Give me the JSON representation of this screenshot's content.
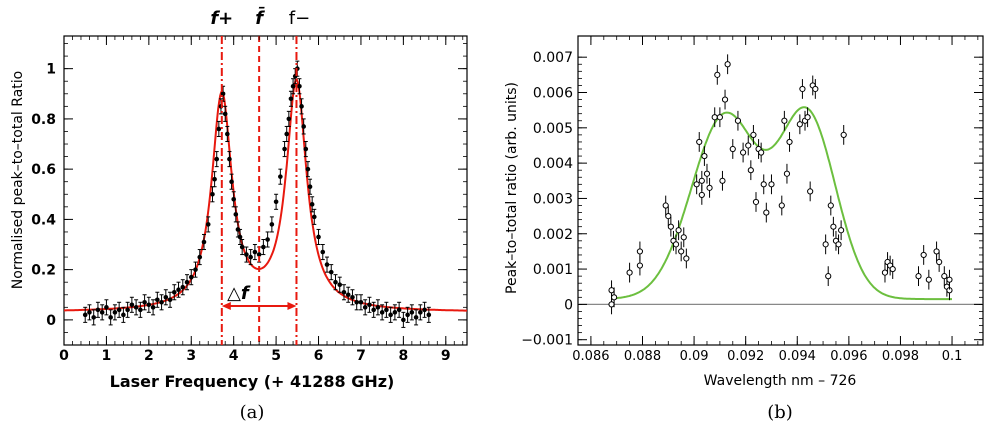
{
  "chart_data": [
    {
      "panel_label": "(a)",
      "type": "scatter",
      "xlabel": "Laser Frequency (+ 41288 GHz)",
      "ylabel": "Normalised peak–to–total Ratio",
      "xlim": [
        0,
        9.5
      ],
      "ylim": [
        -0.1,
        1.13
      ],
      "xticks": [
        0,
        1,
        2,
        3,
        4,
        5,
        6,
        7,
        8,
        9
      ],
      "yticks": [
        0,
        0.2,
        0.4,
        0.6,
        0.8,
        1
      ],
      "ytick_labels": [
        "0",
        "0.2",
        "0.4",
        "0.6",
        "0.8",
        "1"
      ],
      "colors": {
        "data": "#000000",
        "fit": "#e8190f",
        "markers": "#e8190f"
      },
      "vlines": [
        {
          "label": "f+",
          "x": 3.72,
          "style": "dash-dot"
        },
        {
          "label": "f̄",
          "x": 4.6,
          "style": "dashed"
        },
        {
          "label": "f−",
          "x": 5.48,
          "style": "dash-dot"
        }
      ],
      "delta_label": "△f",
      "delta_arrow": {
        "x1": 3.72,
        "x2": 5.48,
        "y": 0.055
      },
      "fit_model": {
        "baseline": 0.03,
        "peaks": [
          {
            "center": 3.72,
            "amp": 0.855,
            "hwhm": 0.29
          },
          {
            "center": 5.48,
            "amp": 0.905,
            "hwhm": 0.29
          }
        ]
      },
      "series": [
        {
          "x": [
            0.5,
            0.6,
            0.7,
            0.8,
            0.9,
            1.0,
            1.1,
            1.2,
            1.3,
            1.4,
            1.5,
            1.6,
            1.7,
            1.8,
            1.9,
            2.0,
            2.1,
            2.2,
            2.3,
            2.4,
            2.5,
            2.6,
            2.7,
            2.8,
            2.9,
            3.0,
            3.1,
            3.2,
            3.3,
            3.4,
            3.5,
            3.55,
            3.6,
            3.65,
            3.7,
            3.75,
            3.8,
            3.85,
            3.9,
            3.95,
            4.0,
            4.05,
            4.1,
            4.15,
            4.2,
            4.3,
            4.4,
            4.5,
            4.6,
            4.7,
            4.8,
            4.9,
            5.0,
            5.1,
            5.2,
            5.25,
            5.3,
            5.35,
            5.4,
            5.45,
            5.5,
            5.55,
            5.6,
            5.65,
            5.7,
            5.75,
            5.8,
            5.85,
            5.9,
            6.0,
            6.1,
            6.2,
            6.3,
            6.4,
            6.5,
            6.6,
            6.7,
            6.8,
            6.9,
            7.0,
            7.1,
            7.2,
            7.3,
            7.4,
            7.5,
            7.6,
            7.7,
            7.8,
            7.9,
            8.0,
            8.1,
            8.2,
            8.3,
            8.4,
            8.5,
            8.6
          ],
          "y": [
            0.02,
            0.03,
            0.01,
            0.04,
            0.03,
            0.05,
            0.01,
            0.03,
            0.04,
            0.02,
            0.04,
            0.06,
            0.05,
            0.04,
            0.07,
            0.06,
            0.05,
            0.08,
            0.07,
            0.09,
            0.08,
            0.11,
            0.12,
            0.13,
            0.15,
            0.17,
            0.2,
            0.25,
            0.31,
            0.38,
            0.5,
            0.56,
            0.64,
            0.76,
            0.85,
            0.9,
            0.82,
            0.74,
            0.64,
            0.55,
            0.48,
            0.42,
            0.36,
            0.33,
            0.29,
            0.26,
            0.25,
            0.27,
            0.26,
            0.29,
            0.32,
            0.38,
            0.47,
            0.57,
            0.68,
            0.74,
            0.8,
            0.88,
            0.93,
            0.97,
            1.0,
            0.93,
            0.85,
            0.77,
            0.68,
            0.6,
            0.53,
            0.46,
            0.41,
            0.33,
            0.27,
            0.22,
            0.19,
            0.15,
            0.14,
            0.11,
            0.1,
            0.09,
            0.07,
            0.07,
            0.05,
            0.06,
            0.04,
            0.05,
            0.03,
            0.04,
            0.02,
            0.03,
            0.04,
            0.0,
            0.02,
            0.03,
            0.01,
            0.03,
            0.04,
            0.02
          ]
        }
      ]
    },
    {
      "panel_label": "(b)",
      "type": "scatter",
      "xlabel": "Wavelength nm – 726",
      "ylabel": "Peak–to–total ratio (arb. units)",
      "xlim": [
        0.0855,
        0.1012
      ],
      "ylim": [
        -0.00115,
        0.0076
      ],
      "xticks": [
        0.086,
        0.088,
        0.09,
        0.092,
        0.094,
        0.096,
        0.098,
        0.1
      ],
      "xtick_labels": [
        "0.086",
        "0.088",
        "0.09",
        "0.092",
        "0.094",
        "0.096",
        "0.098",
        "0.1"
      ],
      "yticks": [
        -0.001,
        0,
        0.001,
        0.002,
        0.003,
        0.004,
        0.005,
        0.006,
        0.007
      ],
      "ytick_labels": [
        "−0.001",
        "0",
        "0.001",
        "0.002",
        "0.003",
        "0.004",
        "0.005",
        "0.006",
        "0.007"
      ],
      "colors": {
        "data": "#000000",
        "fit": "#6cbf3f",
        "zero_line": "#888888"
      },
      "fit_model": {
        "baseline": 0.00015,
        "peaks": [
          {
            "center": 0.0912,
            "amp": 0.0052,
            "sigma": 0.0013
          },
          {
            "center": 0.0944,
            "amp": 0.00515,
            "sigma": 0.0011
          }
        ]
      },
      "series": [
        {
          "x": [
            0.0868,
            0.0868,
            0.0869,
            0.0875,
            0.0879,
            0.0879,
            0.0889,
            0.089,
            0.0891,
            0.0892,
            0.0893,
            0.0894,
            0.0895,
            0.0896,
            0.0897,
            0.0901,
            0.0902,
            0.0903,
            0.0903,
            0.0904,
            0.0905,
            0.0906,
            0.0908,
            0.0909,
            0.091,
            0.0911,
            0.0912,
            0.0913,
            0.0915,
            0.0917,
            0.0919,
            0.0921,
            0.0922,
            0.0923,
            0.0924,
            0.0925,
            0.0926,
            0.0927,
            0.0928,
            0.093,
            0.0934,
            0.0935,
            0.0936,
            0.0937,
            0.0941,
            0.0942,
            0.0943,
            0.0944,
            0.0945,
            0.0946,
            0.0947,
            0.0951,
            0.0952,
            0.0953,
            0.0954,
            0.0955,
            0.0956,
            0.0957,
            0.0958,
            0.0974,
            0.0975,
            0.0976,
            0.0977,
            0.0987,
            0.0989,
            0.0991,
            0.0994,
            0.0995,
            0.0997,
            0.0998,
            0.0999,
            0.0999
          ],
          "y": [
            0.0004,
            0.0,
            0.0002,
            0.0009,
            0.0015,
            0.0011,
            0.0028,
            0.0025,
            0.0022,
            0.0018,
            0.0017,
            0.0021,
            0.0015,
            0.0019,
            0.0013,
            0.0034,
            0.0046,
            0.0031,
            0.0035,
            0.0042,
            0.0037,
            0.0033,
            0.0053,
            0.0065,
            0.0053,
            0.0035,
            0.0058,
            0.0068,
            0.0044,
            0.0052,
            0.0043,
            0.0045,
            0.0038,
            0.0048,
            0.0029,
            0.0044,
            0.0043,
            0.0034,
            0.0026,
            0.0034,
            0.0028,
            0.0052,
            0.0037,
            0.0046,
            0.0051,
            0.0061,
            0.0052,
            0.0053,
            0.0032,
            0.0062,
            0.0061,
            0.0017,
            0.0008,
            0.0028,
            0.0022,
            0.0018,
            0.0017,
            0.0021,
            0.0048,
            0.0009,
            0.0012,
            0.0011,
            0.001,
            0.0008,
            0.0014,
            0.0007,
            0.0015,
            0.0012,
            0.0008,
            0.0005,
            0.0004,
            0.0007
          ]
        }
      ]
    }
  ]
}
